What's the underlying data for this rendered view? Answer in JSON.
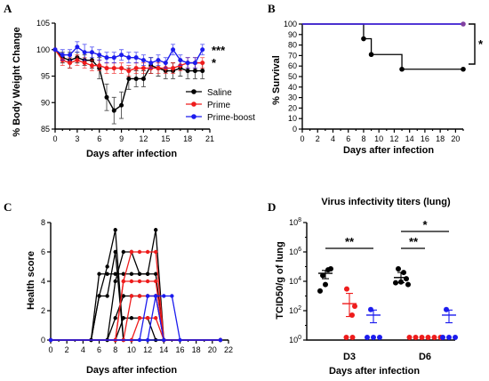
{
  "colors": {
    "saline": "#000000",
    "prime": "#ee1c1c",
    "prime_boost": "#1c1cee",
    "survival_overlap": "#8040a0"
  },
  "chart_data": [
    {
      "panel": "A",
      "type": "line",
      "xlabel": "Days after infection",
      "ylabel": "% Body Weight Change",
      "xlim": [
        0,
        21
      ],
      "ylim": [
        85,
        105
      ],
      "xticks": [
        0,
        3,
        6,
        9,
        12,
        15,
        18,
        21
      ],
      "yticks": [
        85,
        90,
        95,
        100,
        105
      ],
      "legend_position": "right",
      "series": [
        {
          "name": "Saline",
          "color": "saline",
          "x": [
            0,
            1,
            2,
            3,
            4,
            5,
            6,
            7,
            8,
            9,
            10,
            11,
            12,
            13,
            14,
            15,
            16,
            17,
            18,
            19,
            20
          ],
          "y": [
            100,
            98.5,
            98,
            98.5,
            98,
            98,
            96.5,
            91,
            88.5,
            89.5,
            94.5,
            94.5,
            94.5,
            97,
            96.5,
            96,
            96,
            96.5,
            96,
            96,
            96
          ],
          "err": [
            0,
            1,
            1.5,
            1,
            1,
            1.5,
            2,
            2.5,
            2.5,
            2.5,
            2,
            1.5,
            1.5,
            1.5,
            1.5,
            1.5,
            1.5,
            1.5,
            1.5,
            1.5,
            1.5
          ]
        },
        {
          "name": "Prime",
          "color": "prime",
          "x": [
            0,
            1,
            2,
            3,
            4,
            5,
            6,
            7,
            8,
            9,
            10,
            11,
            12,
            13,
            14,
            15,
            16,
            17,
            18,
            19,
            20
          ],
          "y": [
            100,
            98,
            97.5,
            98,
            97.5,
            97,
            97,
            96.5,
            96.5,
            96.5,
            96,
            96.5,
            96.5,
            96.5,
            96.5,
            96.5,
            96.5,
            97,
            97.5,
            97.5,
            97.5
          ],
          "err": [
            0,
            1,
            1,
            1,
            1,
            1,
            1,
            1,
            1,
            1,
            1,
            1,
            1,
            1,
            1,
            1,
            1,
            1,
            1,
            1,
            1
          ]
        },
        {
          "name": "Prime-boost",
          "color": "prime_boost",
          "x": [
            0,
            1,
            2,
            3,
            4,
            5,
            6,
            7,
            8,
            9,
            10,
            11,
            12,
            13,
            14,
            15,
            16,
            17,
            18,
            19,
            20
          ],
          "y": [
            100,
            99,
            99,
            100.5,
            99.5,
            99.5,
            99,
            98.5,
            98.5,
            99,
            98.5,
            98.5,
            98,
            97.5,
            98,
            97.5,
            100,
            98,
            97.5,
            97.5,
            100
          ],
          "err": [
            0,
            1,
            1,
            1,
            1.5,
            1,
            1,
            1,
            1,
            1,
            1,
            1,
            1,
            1,
            1,
            1,
            1,
            1,
            1,
            1,
            1
          ]
        }
      ],
      "annotations": [
        "***",
        "*"
      ]
    },
    {
      "panel": "B",
      "type": "line",
      "xlabel": "Days after infection",
      "ylabel": "% Survival",
      "xlim": [
        0,
        21
      ],
      "ylim": [
        0,
        100
      ],
      "xticks": [
        0,
        2,
        4,
        6,
        8,
        10,
        12,
        14,
        16,
        18,
        20
      ],
      "yticks": [
        0,
        10,
        20,
        30,
        40,
        50,
        60,
        70,
        80,
        90,
        100
      ],
      "series": [
        {
          "color": "saline",
          "x": [
            0,
            8,
            8,
            9,
            9,
            13,
            13,
            21
          ],
          "y": [
            100,
            100,
            86,
            86,
            71,
            71,
            57,
            57
          ]
        },
        {
          "color": "prime",
          "x": [
            0,
            21
          ],
          "y": [
            100,
            100
          ]
        },
        {
          "color": "prime_boost",
          "x": [
            0,
            21
          ],
          "y": [
            100,
            100
          ]
        }
      ],
      "markers": [
        {
          "color": "saline",
          "points": [
            [
              8,
              86
            ],
            [
              9,
              71
            ],
            [
              13,
              57
            ],
            [
              21,
              57
            ]
          ]
        },
        {
          "color": "survival_overlap",
          "points": [
            [
              21,
              100
            ]
          ]
        }
      ],
      "annotations": [
        "*"
      ]
    },
    {
      "panel": "C",
      "type": "line",
      "xlabel": "Days after infection",
      "ylabel": "Health score",
      "xlim": [
        0,
        22
      ],
      "ylim": [
        0,
        8
      ],
      "xticks": [
        0,
        2,
        4,
        6,
        8,
        10,
        12,
        14,
        16,
        18,
        20,
        22
      ],
      "yticks": [
        0,
        2,
        4,
        6,
        8
      ],
      "series": [
        {
          "color": "saline",
          "x": [
            0,
            5,
            6,
            7,
            8,
            9,
            21
          ],
          "y": [
            0,
            0,
            3,
            3,
            6,
            0,
            0
          ]
        },
        {
          "color": "saline",
          "x": [
            0,
            5,
            6,
            7,
            8,
            9,
            21
          ],
          "y": [
            0,
            0,
            3,
            5,
            7.5,
            0,
            0
          ]
        },
        {
          "color": "saline",
          "x": [
            0,
            5,
            6,
            7,
            8,
            9,
            10,
            11,
            12,
            13,
            14,
            21
          ],
          "y": [
            0,
            0,
            4.5,
            4.5,
            4.5,
            4.5,
            4.5,
            4.5,
            4.5,
            4.5,
            0,
            0
          ]
        },
        {
          "color": "saline",
          "x": [
            0,
            7,
            8,
            9,
            10,
            11,
            12,
            13,
            14,
            21
          ],
          "y": [
            0,
            0,
            4,
            6,
            6,
            4.5,
            4.5,
            7.5,
            0,
            0
          ]
        },
        {
          "color": "saline",
          "x": [
            0,
            7,
            8,
            9,
            10,
            11,
            12,
            13,
            14,
            21
          ],
          "y": [
            0,
            0,
            1.5,
            3,
            3,
            3,
            3,
            3,
            0,
            0
          ]
        },
        {
          "color": "saline",
          "x": [
            0,
            8,
            9,
            10,
            11,
            12,
            13,
            21
          ],
          "y": [
            0,
            0,
            1.5,
            1.5,
            1.5,
            1.5,
            0,
            0
          ]
        },
        {
          "color": "prime",
          "x": [
            0,
            8,
            9,
            10,
            11,
            12,
            13,
            14,
            21
          ],
          "y": [
            0,
            0,
            4,
            6,
            6,
            6,
            6,
            0,
            0
          ]
        },
        {
          "color": "prime",
          "x": [
            0,
            8,
            9,
            10,
            11,
            12,
            13,
            14,
            21
          ],
          "y": [
            0,
            0,
            4,
            4,
            4,
            4,
            4,
            0,
            0
          ]
        },
        {
          "color": "prime",
          "x": [
            0,
            9,
            10,
            11,
            12,
            13,
            14,
            21
          ],
          "y": [
            0,
            0,
            3,
            3,
            3,
            3,
            0,
            0
          ]
        },
        {
          "color": "prime",
          "x": [
            0,
            10,
            11,
            12,
            13,
            14,
            21
          ],
          "y": [
            0,
            0,
            1.5,
            1.5,
            1.5,
            0,
            0
          ]
        },
        {
          "color": "prime_boost",
          "x": [
            0,
            11,
            12,
            13,
            14,
            21
          ],
          "y": [
            0,
            0,
            3,
            3,
            0,
            0
          ]
        },
        {
          "color": "prime_boost",
          "x": [
            0,
            12,
            13,
            14,
            15,
            16,
            21
          ],
          "y": [
            0,
            0,
            3,
            3,
            3,
            0,
            0
          ]
        },
        {
          "color": "prime_boost",
          "x": [
            0,
            21
          ],
          "y": [
            0,
            0
          ]
        }
      ]
    },
    {
      "panel": "D",
      "type": "scatter",
      "title": "Virus infectivity titers (lung)",
      "xlabel": "Days after infection",
      "ylabel": "TCID50/g of lung",
      "scale": "log",
      "ylim": [
        1,
        100000000
      ],
      "yticks": [
        "10^0",
        "10^2",
        "10^4",
        "10^6",
        "10^8"
      ],
      "categories": [
        "D3",
        "D6"
      ],
      "groups": [
        {
          "category": "D3",
          "color": "saline",
          "values": [
            25000,
            60000,
            70000,
            2200,
            6000
          ],
          "mean": 35000,
          "sem_low": 15000,
          "sem_high": 55000
        },
        {
          "category": "D3",
          "color": "prime",
          "values": [
            3000,
            50,
            200,
            2,
            2
          ],
          "mean": 300,
          "sem_low": 40,
          "sem_high": 1500
        },
        {
          "category": "D3",
          "color": "prime_boost",
          "values": [
            120,
            2,
            2,
            2
          ],
          "mean": 50,
          "sem_low": 15,
          "sem_high": 110
        },
        {
          "category": "D6",
          "color": "saline",
          "values": [
            70000,
            40000,
            15000,
            8000,
            9000,
            6000
          ],
          "mean": 18000,
          "sem_low": 8000,
          "sem_high": 40000
        },
        {
          "category": "D6",
          "color": "prime",
          "values": [
            2,
            2,
            2,
            2,
            2,
            2
          ],
          "mean": 2
        },
        {
          "category": "D6",
          "color": "prime_boost",
          "values": [
            120,
            2,
            2,
            2
          ],
          "mean": 50,
          "sem_low": 15,
          "sem_high": 110
        }
      ],
      "annotations": [
        "**",
        "**",
        "*"
      ]
    }
  ],
  "labels": {
    "panel_a": "A",
    "panel_b": "B",
    "panel_c": "C",
    "panel_d": "D",
    "a_ylabel": "% Body Weight Change",
    "a_xlabel": "Days after infection",
    "b_ylabel": "% Survival",
    "b_xlabel": "Days after infection",
    "c_ylabel": "Health score",
    "c_xlabel": "Days after infection",
    "d_ylabel": "TCID50/g of lung",
    "d_xlabel": "Days after infection",
    "d_title": "Virus infectivity titers (lung)",
    "legend_saline": "Saline",
    "legend_prime": "Prime",
    "legend_prime_boost": "Prime-boost",
    "sig_a_pb": "***",
    "sig_a_p": "*",
    "sig_b": "*",
    "sig_d3": "**",
    "sig_d6a": "**",
    "sig_d6b": "*",
    "d_cat1": "D3",
    "d_cat2": "D6"
  }
}
